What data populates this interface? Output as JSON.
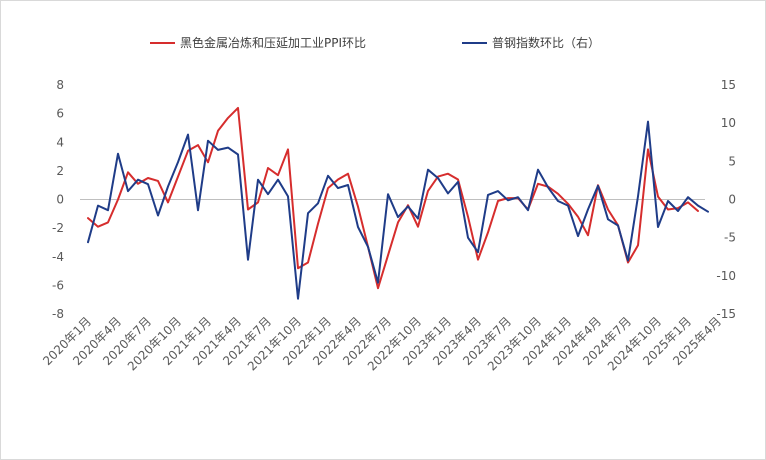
{
  "chart_data": {
    "type": "line",
    "title": "",
    "legend": {
      "placement": "top",
      "entries": [
        "黑色金属冶炼和压延加工业PPI环比",
        "普钢指数环比（右）"
      ]
    },
    "x_tick_labels": [
      "2020年1月",
      "2020年4月",
      "2020年7月",
      "2020年10月",
      "2021年1月",
      "2021年4月",
      "2021年7月",
      "2021年10月",
      "2022年1月",
      "2022年4月",
      "2022年7月",
      "2022年10月",
      "2023年1月",
      "2023年4月",
      "2023年7月",
      "2023年10月",
      "2024年1月",
      "2024年4月",
      "2024年7月",
      "2024年10月",
      "2025年1月",
      "2025年4月"
    ],
    "left_axis": {
      "ylim": [
        -8,
        8
      ],
      "ticks": [
        "8",
        "6",
        "4",
        "2",
        "0",
        "-2",
        "-4",
        "-6",
        "-8"
      ]
    },
    "right_axis": {
      "ylim": [
        -15,
        15
      ],
      "ticks": [
        "15",
        "10",
        "5",
        "0",
        "-5",
        "-10",
        "-15"
      ]
    },
    "grid": false,
    "series": [
      {
        "name": "黑色金属冶炼和压延加工业PPI环比",
        "axis": "left",
        "color": "#d62d2d",
        "values": [
          -1.3,
          -1.9,
          -1.6,
          0.0,
          1.9,
          1.1,
          1.5,
          1.3,
          -0.2,
          1.6,
          3.4,
          3.8,
          2.6,
          4.8,
          5.7,
          6.4,
          -0.7,
          -0.2,
          2.2,
          1.7,
          3.5,
          -4.8,
          -4.4,
          -1.7,
          0.8,
          1.4,
          1.8,
          -0.5,
          -3.3,
          -6.2,
          -3.9,
          -1.6,
          -0.4,
          -1.9,
          0.6,
          1.6,
          1.8,
          1.4,
          -1.2,
          -4.2,
          -2.3,
          -0.1,
          0.1,
          0.1,
          -0.7,
          1.1,
          0.9,
          0.4,
          -0.3,
          -1.2,
          -2.5,
          1.0,
          -0.7,
          -1.8,
          -4.4,
          -3.2,
          3.5,
          0.2,
          -0.7,
          -0.6,
          -0.2,
          -0.8
        ]
      },
      {
        "name": "普钢指数环比（右）",
        "axis": "right",
        "color": "#1f3c88",
        "values": [
          -5.6,
          -0.8,
          -1.4,
          6.0,
          1.1,
          2.6,
          2.0,
          -2.1,
          1.7,
          4.9,
          8.5,
          -1.4,
          7.7,
          6.5,
          6.8,
          5.9,
          -7.9,
          2.6,
          0.7,
          2.6,
          0.4,
          -13.0,
          -1.8,
          -0.5,
          3.1,
          1.5,
          1.9,
          -3.6,
          -6.2,
          -10.9,
          0.7,
          -2.3,
          -0.9,
          -2.5,
          3.9,
          2.8,
          0.8,
          2.3,
          -5.0,
          -6.9,
          0.6,
          1.1,
          -0.1,
          0.3,
          -1.4,
          3.9,
          1.6,
          -0.2,
          -0.8,
          -4.8,
          -1.3,
          1.8,
          -2.6,
          -3.4,
          -8.0,
          0.4,
          10.2,
          -3.6,
          -0.2,
          -1.5,
          0.3,
          -0.8,
          -1.6
        ]
      }
    ]
  }
}
